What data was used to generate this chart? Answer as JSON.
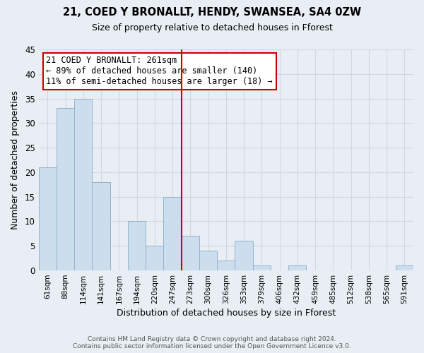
{
  "title": "21, COED Y BRONALLT, HENDY, SWANSEA, SA4 0ZW",
  "subtitle": "Size of property relative to detached houses in Fforest",
  "xlabel": "Distribution of detached houses by size in Fforest",
  "ylabel": "Number of detached properties",
  "bar_labels": [
    "61sqm",
    "88sqm",
    "114sqm",
    "141sqm",
    "167sqm",
    "194sqm",
    "220sqm",
    "247sqm",
    "273sqm",
    "300sqm",
    "326sqm",
    "353sqm",
    "379sqm",
    "406sqm",
    "432sqm",
    "459sqm",
    "485sqm",
    "512sqm",
    "538sqm",
    "565sqm",
    "591sqm"
  ],
  "bar_values": [
    21,
    33,
    35,
    18,
    0,
    10,
    5,
    15,
    7,
    4,
    2,
    6,
    1,
    0,
    1,
    0,
    0,
    0,
    0,
    0,
    1
  ],
  "bar_color": "#ccdded",
  "bar_edge_color": "#92b4cc",
  "vline_color": "#cc0000",
  "annotation_title": "21 COED Y BRONALLT: 261sqm",
  "annotation_line1": "← 89% of detached houses are smaller (140)",
  "annotation_line2": "11% of semi-detached houses are larger (18) →",
  "annotation_box_color": "#ffffff",
  "annotation_box_edge": "#cc0000",
  "ylim": [
    0,
    45
  ],
  "yticks": [
    0,
    5,
    10,
    15,
    20,
    25,
    30,
    35,
    40,
    45
  ],
  "footer_line1": "Contains HM Land Registry data © Crown copyright and database right 2024.",
  "footer_line2": "Contains public sector information licensed under the Open Government Licence v3.0.",
  "background_color": "#e8eef4",
  "grid_color": "#d0d8e0"
}
